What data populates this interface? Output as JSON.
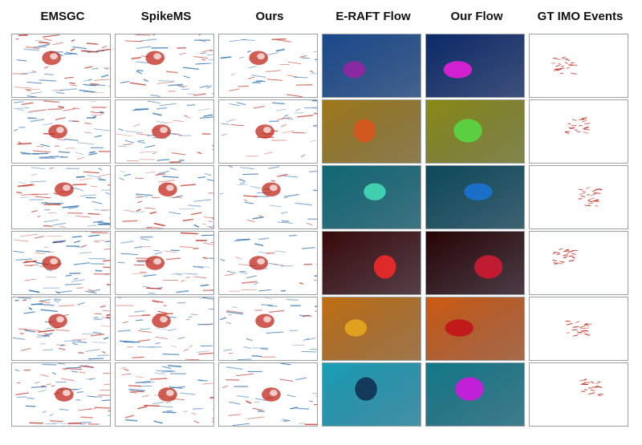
{
  "columns": [
    "EMSGC",
    "SpikeMS",
    "Ours",
    "E-RAFT Flow",
    "Our Flow",
    "GT IMO Events"
  ],
  "row_count": 6,
  "colors": {
    "event_red": "#c0271a",
    "event_blue": "#2d6fb0",
    "grid_border": "#9aa0a6",
    "flow_backgrounds": [
      [
        "#1a4a8c",
        "#0c2a6a"
      ],
      [
        "#a07a18",
        "#8a8a14"
      ],
      [
        "#0f6a74",
        "#0c4a5a"
      ],
      [
        "#3a0a0a",
        "#280404"
      ],
      [
        "#c27010",
        "#d05a10"
      ],
      [
        "#1aa0b8",
        "#127a88"
      ]
    ],
    "flow_blobs": [
      [
        "#8a2aa0",
        "#d020d0"
      ],
      [
        "#d05a20",
        "#5ad040"
      ],
      [
        "#40d0b0",
        "#1a70c8"
      ],
      [
        "#e02a2a",
        "#c01a30"
      ],
      [
        "#e0a020",
        "#c01a1a"
      ],
      [
        "#143a5a",
        "#c020d8"
      ]
    ]
  }
}
